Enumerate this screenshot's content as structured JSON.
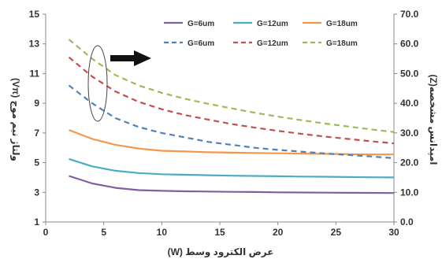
{
  "chart_data": {
    "type": "line",
    "xlabel": "عرض الکترود وسط (W)",
    "ylabel_left": "ولتاژ نیم موج (Vπ)",
    "ylabel_right": "امپدانس مشخصه(Z)",
    "xlim": [
      0,
      30
    ],
    "ylim_left": [
      1,
      15
    ],
    "ylim_right": [
      0,
      70
    ],
    "x_ticks": [
      "0",
      "5",
      "10",
      "15",
      "20",
      "25",
      "30"
    ],
    "y_left_ticks": [
      "1",
      "3",
      "5",
      "7",
      "9",
      "11",
      "13",
      "15"
    ],
    "y_right_ticks": [
      "0.0",
      "10.0",
      "20.0",
      "30.0",
      "40.0",
      "50.0",
      "60.0",
      "70.0"
    ],
    "grid": false,
    "legend_position": "top-right",
    "x": [
      2,
      4,
      6,
      8,
      10,
      12,
      14,
      16,
      18,
      20,
      22,
      24,
      26,
      28,
      30
    ],
    "series": [
      {
        "name": "G=6um",
        "axis": "left",
        "style": "solid",
        "color": "#7f609f",
        "values": [
          4.1,
          3.6,
          3.3,
          3.15,
          3.1,
          3.07,
          3.05,
          3.03,
          3.02,
          3.0,
          2.99,
          2.98,
          2.97,
          2.96,
          2.95
        ]
      },
      {
        "name": "G=12um",
        "axis": "left",
        "style": "solid",
        "color": "#4bacc6",
        "values": [
          5.25,
          4.75,
          4.45,
          4.3,
          4.22,
          4.18,
          4.15,
          4.12,
          4.1,
          4.08,
          4.06,
          4.05,
          4.03,
          4.01,
          4.0
        ]
      },
      {
        "name": "G=18um",
        "axis": "left",
        "style": "solid",
        "color": "#f79646",
        "values": [
          7.2,
          6.6,
          6.2,
          5.95,
          5.8,
          5.75,
          5.7,
          5.67,
          5.65,
          5.63,
          5.61,
          5.59,
          5.57,
          5.55,
          5.55
        ]
      },
      {
        "name": "G=6um",
        "axis": "right",
        "style": "dashed",
        "color": "#4f81bd",
        "values": [
          46.0,
          40.0,
          35.0,
          32.0,
          30.0,
          28.5,
          27.0,
          26.0,
          25.0,
          24.3,
          23.7,
          23.1,
          22.6,
          22.1,
          21.5
        ]
      },
      {
        "name": "G=12um",
        "axis": "right",
        "style": "dashed",
        "color": "#c0504d",
        "values": [
          55.5,
          49.0,
          44.0,
          40.5,
          38.0,
          36.0,
          34.5,
          33.0,
          31.8,
          30.7,
          29.7,
          28.8,
          28.0,
          27.2,
          26.5
        ]
      },
      {
        "name": "G=18um",
        "axis": "right",
        "style": "dashed",
        "color": "#9bbb59",
        "values": [
          61.5,
          55.0,
          49.5,
          46.0,
          43.5,
          41.5,
          39.8,
          38.3,
          36.8,
          35.5,
          34.3,
          33.2,
          32.2,
          31.2,
          30.3
        ]
      }
    ],
    "annotation": "ellipse around dashed curves with arrow pointing right to the right axis"
  }
}
